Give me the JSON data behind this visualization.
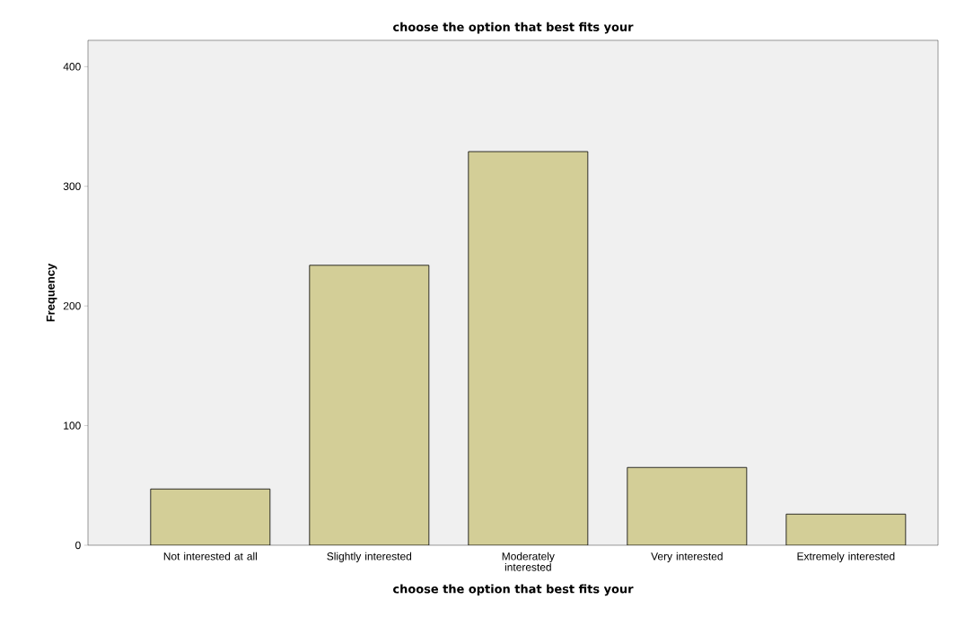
{
  "chart_data": {
    "type": "bar",
    "title": "choose the option that best fits your",
    "xlabel": "choose the option that best fits your",
    "ylabel": "Frequency",
    "categories": [
      "Not interested at all",
      "Slightly interested",
      "Moderately interested",
      "Very interested",
      "Extremely interested"
    ],
    "values": [
      47,
      234,
      329,
      65,
      26
    ],
    "color": "#d3ce97",
    "ylim": [
      0,
      422
    ],
    "yticks": [
      0,
      100,
      200,
      300,
      400
    ],
    "grid": false
  }
}
